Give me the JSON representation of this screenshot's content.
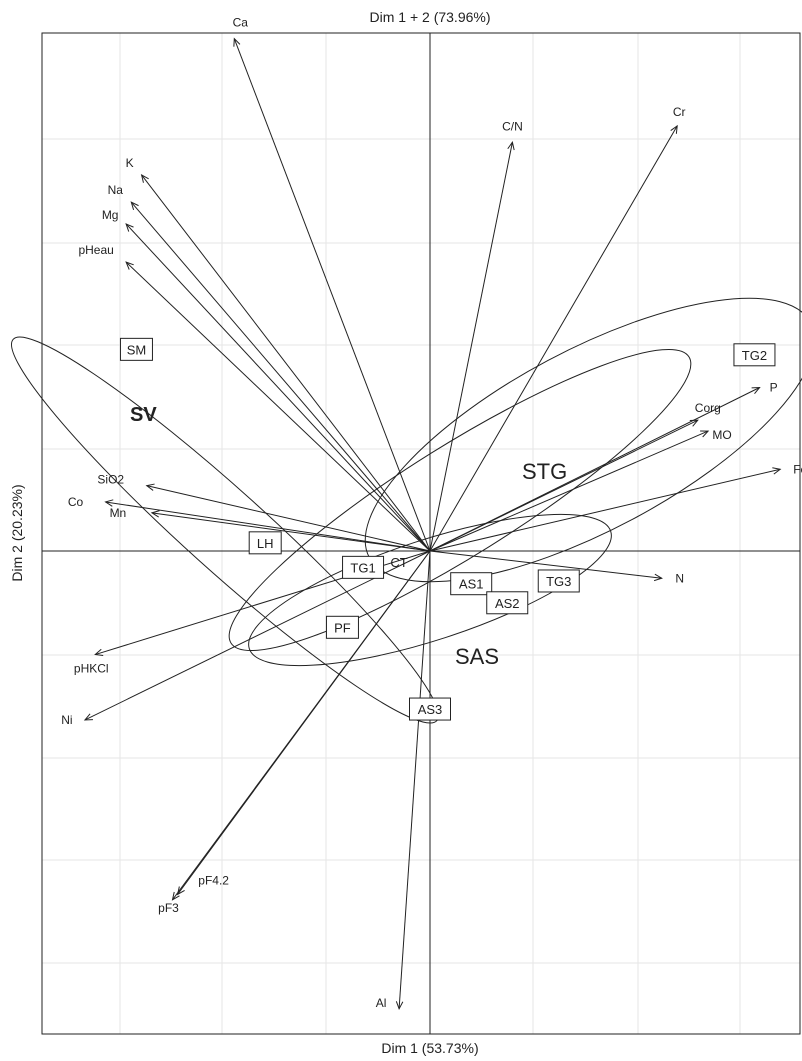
{
  "chart_data": {
    "type": "scatter",
    "title": "Dim 1 + 2 (73.96%)",
    "xlabel": "Dim 1 (53.73%)",
    "ylabel": "Dim 2 (20.23%)",
    "xlim": [
      -0.75,
      0.75
    ],
    "ylim": [
      -0.85,
      1.0
    ],
    "grid": true,
    "variables": [
      {
        "name": "Ca",
        "x": -0.38,
        "y": 0.94
      },
      {
        "name": "C/N",
        "x": 0.16,
        "y": 0.75
      },
      {
        "name": "Cr",
        "x": 0.48,
        "y": 0.78
      },
      {
        "name": "K",
        "x": -0.56,
        "y": 0.69
      },
      {
        "name": "Na",
        "x": -0.58,
        "y": 0.64
      },
      {
        "name": "Mg",
        "x": -0.59,
        "y": 0.6
      },
      {
        "name": "pHeau",
        "x": -0.59,
        "y": 0.53
      },
      {
        "name": "P",
        "x": 0.64,
        "y": 0.3
      },
      {
        "name": "Corg",
        "x": 0.52,
        "y": 0.24
      },
      {
        "name": "MO",
        "x": 0.54,
        "y": 0.22
      },
      {
        "name": "Fe",
        "x": 0.68,
        "y": 0.15
      },
      {
        "name": "SiO2",
        "x": -0.55,
        "y": 0.12
      },
      {
        "name": "Co",
        "x": -0.63,
        "y": 0.09
      },
      {
        "name": "Mn",
        "x": -0.54,
        "y": 0.07
      },
      {
        "name": "N",
        "x": 0.45,
        "y": -0.05
      },
      {
        "name": "pHKCl",
        "x": -0.65,
        "y": -0.19
      },
      {
        "name": "Ni",
        "x": -0.67,
        "y": -0.31
      },
      {
        "name": "pF4.2",
        "x": -0.49,
        "y": -0.63
      },
      {
        "name": "pF3",
        "x": -0.5,
        "y": -0.64
      },
      {
        "name": "Al",
        "x": -0.06,
        "y": -0.84
      }
    ],
    "groups": [
      {
        "name": "SM",
        "x": -0.57,
        "y": 0.37
      },
      {
        "name": "TG2",
        "x": 0.63,
        "y": 0.36
      },
      {
        "name": "LH",
        "x": -0.32,
        "y": 0.015
      },
      {
        "name": "TG1",
        "x": -0.13,
        "y": -0.03
      },
      {
        "name": "CT",
        "x": -0.06,
        "y": -0.02
      },
      {
        "name": "AS1",
        "x": 0.08,
        "y": -0.06
      },
      {
        "name": "TG3",
        "x": 0.25,
        "y": -0.055
      },
      {
        "name": "AS2",
        "x": 0.15,
        "y": -0.095
      },
      {
        "name": "PF",
        "x": -0.17,
        "y": -0.14
      },
      {
        "name": "AS3",
        "x": 0.0,
        "y": -0.29
      }
    ],
    "clusters": [
      {
        "name": "SV"
      },
      {
        "name": "STG"
      },
      {
        "name": "SAS"
      }
    ]
  }
}
